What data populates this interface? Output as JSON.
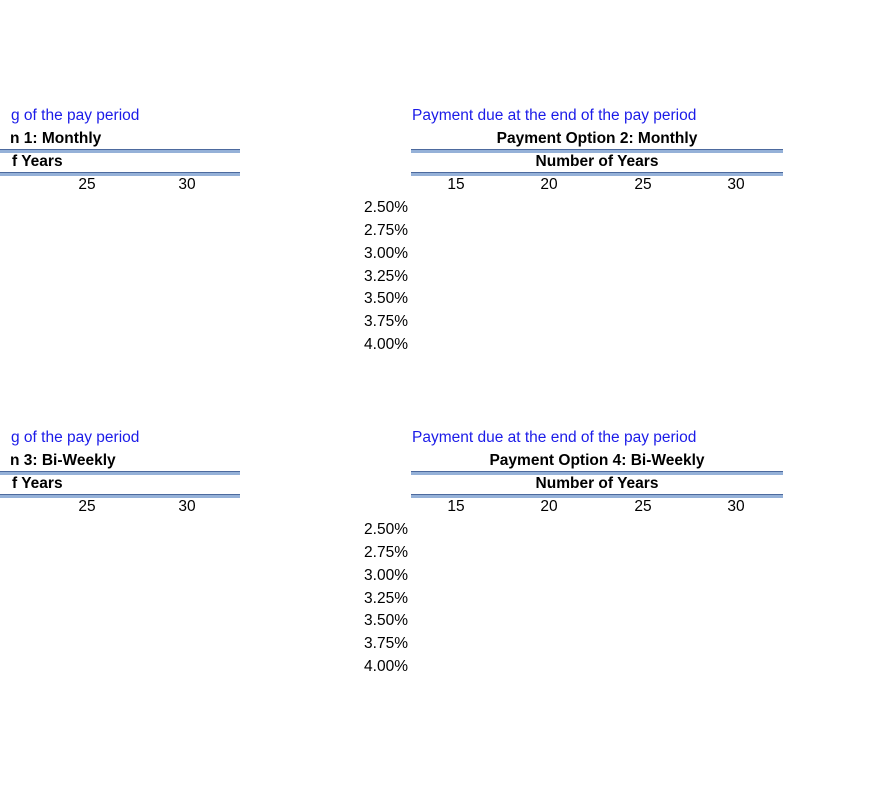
{
  "colors": {
    "caption_blue": "#1b1be8",
    "rule_blue": "#95b1d8",
    "rule_blue_dark": "#4d6a9e",
    "text_black": "#000000",
    "background": "#ffffff"
  },
  "rates": [
    "2.50%",
    "2.75%",
    "3.00%",
    "3.25%",
    "3.50%",
    "3.75%",
    "4.00%"
  ],
  "groups": [
    {
      "left_table": {
        "caption": "g of the pay period",
        "option": "n 1: Monthly",
        "years": "f Years",
        "columns": [
          "25",
          "30"
        ]
      },
      "right_table": {
        "caption": "Payment due at the end of the pay period",
        "option": "Payment Option 2: Monthly",
        "years": "Number of Years",
        "columns": [
          "15",
          "20",
          "25",
          "30"
        ]
      }
    },
    {
      "left_table": {
        "caption": "g of the pay period",
        "option": "n 3: Bi-Weekly",
        "years": "f Years",
        "columns": [
          "25",
          "30"
        ]
      },
      "right_table": {
        "caption": "Payment due at the end of the pay period",
        "option": "Payment Option 4: Bi-Weekly",
        "years": "Number of Years",
        "columns": [
          "15",
          "20",
          "25",
          "30"
        ]
      }
    }
  ]
}
